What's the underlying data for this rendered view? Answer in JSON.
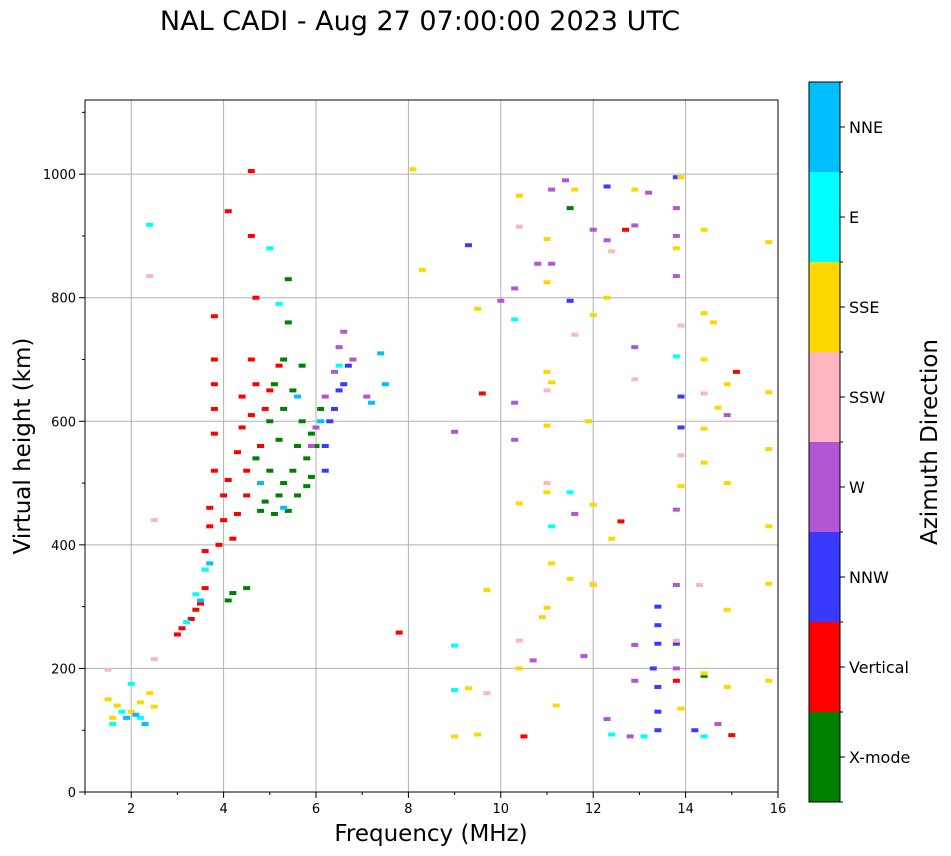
{
  "chart_data": {
    "type": "scatter",
    "title": "NAL CADI - Aug 27 07:00:00 2023 UTC",
    "xlabel": "Frequency (MHz)",
    "ylabel": "Virtual height (km)",
    "xlim": [
      1,
      16
    ],
    "ylim": [
      0,
      1120
    ],
    "xticks": [
      2,
      4,
      6,
      8,
      10,
      12,
      14,
      16
    ],
    "yticks": [
      0,
      200,
      400,
      600,
      800,
      1000
    ],
    "grid": true,
    "colorbar": {
      "label": "Azimuth Direction",
      "categories": [
        {
          "name": "X-mode",
          "color": "#008000"
        },
        {
          "name": "Vertical",
          "color": "#ff0000"
        },
        {
          "name": "NNW",
          "color": "#3a3aff"
        },
        {
          "name": "W",
          "color": "#b356d6"
        },
        {
          "name": "SSW",
          "color": "#ffb6c1"
        },
        {
          "name": "SSE",
          "color": "#ffd700"
        },
        {
          "name": "E",
          "color": "#00ffff"
        },
        {
          "name": "NNE",
          "color": "#00bfff"
        }
      ]
    },
    "series": [
      {
        "name": "X-mode",
        "points": [
          [
            4.1,
            310
          ],
          [
            4.2,
            322
          ],
          [
            4.5,
            330
          ],
          [
            4.7,
            540
          ],
          [
            4.8,
            455
          ],
          [
            4.9,
            470
          ],
          [
            5.0,
            520
          ],
          [
            5.0,
            600
          ],
          [
            5.1,
            450
          ],
          [
            5.1,
            660
          ],
          [
            5.2,
            480
          ],
          [
            5.2,
            570
          ],
          [
            5.3,
            500
          ],
          [
            5.3,
            620
          ],
          [
            5.3,
            700
          ],
          [
            5.4,
            455
          ],
          [
            5.4,
            760
          ],
          [
            5.4,
            830
          ],
          [
            5.5,
            520
          ],
          [
            5.5,
            650
          ],
          [
            5.6,
            480
          ],
          [
            5.6,
            560
          ],
          [
            5.7,
            600
          ],
          [
            5.7,
            690
          ],
          [
            5.8,
            495
          ],
          [
            5.8,
            540
          ],
          [
            5.9,
            510
          ],
          [
            5.9,
            580
          ],
          [
            6.0,
            560
          ],
          [
            6.1,
            620
          ],
          [
            14.4,
            188
          ],
          [
            11.5,
            945
          ]
        ]
      },
      {
        "name": "Vertical",
        "points": [
          [
            3.0,
            255
          ],
          [
            3.1,
            265
          ],
          [
            3.3,
            280
          ],
          [
            3.4,
            295
          ],
          [
            3.5,
            305
          ],
          [
            3.6,
            330
          ],
          [
            3.6,
            360
          ],
          [
            3.6,
            390
          ],
          [
            3.7,
            430
          ],
          [
            3.7,
            460
          ],
          [
            3.8,
            520
          ],
          [
            3.8,
            580
          ],
          [
            3.8,
            620
          ],
          [
            3.8,
            660
          ],
          [
            3.8,
            700
          ],
          [
            3.8,
            770
          ],
          [
            3.9,
            400
          ],
          [
            4.0,
            440
          ],
          [
            4.0,
            480
          ],
          [
            4.1,
            505
          ],
          [
            4.1,
            940
          ],
          [
            4.2,
            410
          ],
          [
            4.3,
            450
          ],
          [
            4.3,
            550
          ],
          [
            4.4,
            590
          ],
          [
            4.4,
            640
          ],
          [
            4.5,
            480
          ],
          [
            4.5,
            520
          ],
          [
            4.6,
            610
          ],
          [
            4.6,
            700
          ],
          [
            4.6,
            1005
          ],
          [
            4.6,
            900
          ],
          [
            4.7,
            660
          ],
          [
            4.7,
            800
          ],
          [
            4.8,
            500
          ],
          [
            4.8,
            560
          ],
          [
            4.9,
            620
          ],
          [
            5.0,
            650
          ],
          [
            5.2,
            690
          ],
          [
            7.8,
            258
          ],
          [
            9.6,
            645
          ],
          [
            12.6,
            438
          ],
          [
            12.7,
            910
          ],
          [
            13.8,
            180
          ],
          [
            15.0,
            92
          ],
          [
            15.1,
            680
          ],
          [
            10.5,
            90
          ]
        ]
      },
      {
        "name": "NNW",
        "points": [
          [
            6.2,
            520
          ],
          [
            6.2,
            560
          ],
          [
            6.3,
            600
          ],
          [
            6.4,
            620
          ],
          [
            6.5,
            650
          ],
          [
            6.6,
            660
          ],
          [
            6.7,
            690
          ],
          [
            9.3,
            885
          ],
          [
            11.5,
            795
          ],
          [
            12.3,
            980
          ],
          [
            13.4,
            300
          ],
          [
            13.4,
            270
          ],
          [
            13.4,
            240
          ],
          [
            13.4,
            170
          ],
          [
            13.4,
            130
          ],
          [
            13.4,
            100
          ],
          [
            13.3,
            200
          ],
          [
            13.8,
            240
          ],
          [
            13.9,
            640
          ],
          [
            13.9,
            590
          ],
          [
            13.8,
            995
          ],
          [
            14.2,
            100
          ]
        ]
      },
      {
        "name": "W",
        "points": [
          [
            5.9,
            560
          ],
          [
            6.0,
            590
          ],
          [
            6.2,
            640
          ],
          [
            6.4,
            680
          ],
          [
            6.5,
            720
          ],
          [
            6.6,
            745
          ],
          [
            6.8,
            700
          ],
          [
            7.1,
            640
          ],
          [
            9.0,
            583
          ],
          [
            10.0,
            795
          ],
          [
            10.3,
            815
          ],
          [
            10.3,
            630
          ],
          [
            10.3,
            570
          ],
          [
            10.7,
            213
          ],
          [
            10.8,
            855
          ],
          [
            11.1,
            855
          ],
          [
            11.1,
            975
          ],
          [
            11.4,
            990
          ],
          [
            11.6,
            450
          ],
          [
            11.8,
            220
          ],
          [
            12.0,
            910
          ],
          [
            12.3,
            893
          ],
          [
            12.3,
            118
          ],
          [
            12.8,
            90
          ],
          [
            12.9,
            180
          ],
          [
            12.9,
            720
          ],
          [
            12.9,
            238
          ],
          [
            12.9,
            917
          ],
          [
            13.2,
            970
          ],
          [
            13.8,
            945
          ],
          [
            13.8,
            900
          ],
          [
            13.8,
            835
          ],
          [
            13.8,
            457
          ],
          [
            13.8,
            335
          ],
          [
            13.8,
            200
          ],
          [
            14.7,
            110
          ],
          [
            14.9,
            610
          ]
        ]
      },
      {
        "name": "SSW",
        "points": [
          [
            1.5,
            198
          ],
          [
            2.4,
            835
          ],
          [
            2.5,
            440
          ],
          [
            2.5,
            215
          ],
          [
            9.7,
            160
          ],
          [
            10.4,
            915
          ],
          [
            10.4,
            245
          ],
          [
            11.0,
            650
          ],
          [
            11.0,
            500
          ],
          [
            11.6,
            740
          ],
          [
            12.0,
            337
          ],
          [
            12.4,
            875
          ],
          [
            12.9,
            668
          ],
          [
            13.8,
            245
          ],
          [
            13.9,
            755
          ],
          [
            13.9,
            545
          ],
          [
            14.4,
            645
          ],
          [
            14.3,
            335
          ]
        ]
      },
      {
        "name": "SSE",
        "points": [
          [
            1.5,
            150
          ],
          [
            1.6,
            120
          ],
          [
            1.7,
            140
          ],
          [
            2.0,
            130
          ],
          [
            2.2,
            145
          ],
          [
            2.4,
            160
          ],
          [
            2.5,
            138
          ],
          [
            8.1,
            1008
          ],
          [
            8.3,
            845
          ],
          [
            9.0,
            90
          ],
          [
            9.3,
            168
          ],
          [
            9.5,
            782
          ],
          [
            9.5,
            93
          ],
          [
            9.7,
            327
          ],
          [
            10.4,
            200
          ],
          [
            10.4,
            467
          ],
          [
            10.4,
            965
          ],
          [
            10.9,
            283
          ],
          [
            11.0,
            593
          ],
          [
            11.0,
            680
          ],
          [
            11.0,
            895
          ],
          [
            11.0,
            825
          ],
          [
            11.0,
            485
          ],
          [
            11.0,
            298
          ],
          [
            11.1,
            663
          ],
          [
            11.1,
            370
          ],
          [
            11.2,
            140
          ],
          [
            11.5,
            345
          ],
          [
            11.6,
            975
          ],
          [
            11.9,
            600
          ],
          [
            12.0,
            465
          ],
          [
            12.0,
            772
          ],
          [
            12.0,
            335
          ],
          [
            12.3,
            800
          ],
          [
            12.4,
            410
          ],
          [
            12.9,
            975
          ],
          [
            13.8,
            880
          ],
          [
            13.9,
            495
          ],
          [
            13.9,
            995
          ],
          [
            13.9,
            135
          ],
          [
            14.4,
            910
          ],
          [
            14.4,
            775
          ],
          [
            14.4,
            700
          ],
          [
            14.4,
            588
          ],
          [
            14.4,
            533
          ],
          [
            14.4,
            192
          ],
          [
            14.6,
            760
          ],
          [
            14.7,
            622
          ],
          [
            14.9,
            660
          ],
          [
            14.9,
            500
          ],
          [
            14.9,
            295
          ],
          [
            14.9,
            170
          ],
          [
            15.8,
            890
          ],
          [
            15.8,
            647
          ],
          [
            15.8,
            555
          ],
          [
            15.8,
            430
          ],
          [
            15.8,
            337
          ],
          [
            15.8,
            180
          ]
        ]
      },
      {
        "name": "E",
        "points": [
          [
            1.6,
            110
          ],
          [
            1.8,
            130
          ],
          [
            2.0,
            175
          ],
          [
            2.2,
            120
          ],
          [
            2.4,
            918
          ],
          [
            3.2,
            275
          ],
          [
            3.4,
            320
          ],
          [
            3.6,
            360
          ],
          [
            5.0,
            880
          ],
          [
            5.2,
            790
          ],
          [
            6.5,
            690
          ],
          [
            9.0,
            165
          ],
          [
            9.0,
            237
          ],
          [
            10.3,
            765
          ],
          [
            11.1,
            430
          ],
          [
            11.5,
            485
          ],
          [
            12.4,
            93
          ],
          [
            13.1,
            90
          ],
          [
            13.8,
            705
          ],
          [
            14.4,
            90
          ]
        ]
      },
      {
        "name": "NNE",
        "points": [
          [
            1.9,
            120
          ],
          [
            2.1,
            125
          ],
          [
            2.3,
            110
          ],
          [
            3.5,
            310
          ],
          [
            3.7,
            370
          ],
          [
            4.8,
            500
          ],
          [
            5.3,
            460
          ],
          [
            5.6,
            640
          ],
          [
            6.1,
            600
          ],
          [
            7.4,
            710
          ],
          [
            7.5,
            660
          ],
          [
            7.2,
            630
          ]
        ]
      }
    ]
  }
}
